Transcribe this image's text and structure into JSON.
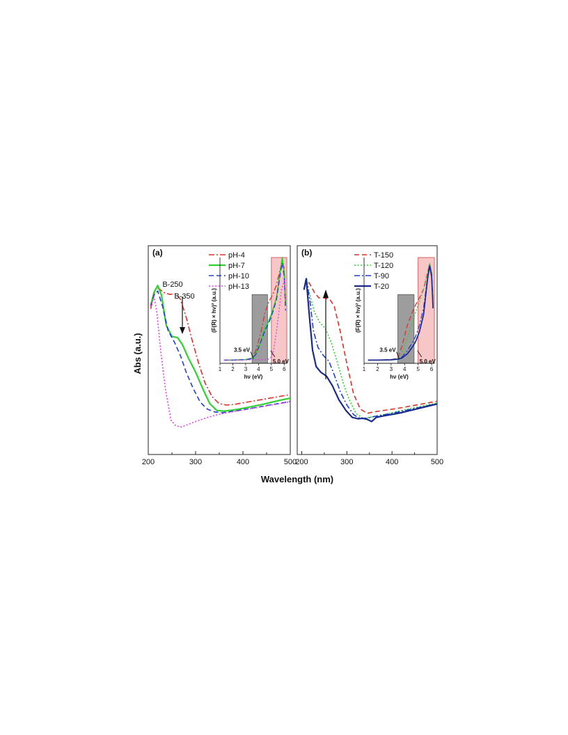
{
  "figure": {
    "ylabel": "Abs (a.u.)",
    "xlabel": "Wavelength (nm)"
  },
  "colors": {
    "pH-4": "#e0302a",
    "pH-7": "#2fd02f",
    "pH-10": "#1f3fd6",
    "pH-13": "#e040e8",
    "T-150": "#e0302a",
    "T-120": "#2fd02f",
    "T-90": "#1f3fd6",
    "T-20": "#1a2a8c",
    "gray_box": "#8c8c8c",
    "pink_box": "#f7c6c6"
  },
  "chart_data": [
    {
      "type": "line",
      "panel_label": "(a)",
      "xlim": [
        200,
        500
      ],
      "xticks": [
        "200",
        "300",
        "400",
        "500"
      ],
      "grid": false,
      "legend_position": "top-right",
      "annotations": {
        "peak1": "B-250",
        "peak2": "B-350",
        "arrow_direction": "down"
      },
      "series": [
        {
          "name": "pH-4",
          "style": "dash-dot",
          "x": [
            205,
            215,
            222,
            232,
            245,
            258,
            268,
            280,
            292,
            305,
            320,
            335,
            350,
            365,
            380,
            400,
            420,
            440,
            460,
            480,
            500
          ],
          "y": [
            0.63,
            0.7,
            0.705,
            0.69,
            0.683,
            0.685,
            0.665,
            0.6,
            0.52,
            0.44,
            0.36,
            0.31,
            0.285,
            0.28,
            0.282,
            0.288,
            0.294,
            0.3,
            0.306,
            0.312,
            0.318
          ]
        },
        {
          "name": "pH-7",
          "style": "solid",
          "x": [
            205,
            212,
            220,
            228,
            238,
            250,
            262,
            272,
            285,
            300,
            315,
            330,
            345,
            360,
            380,
            400,
            420,
            440,
            460,
            480,
            500
          ],
          "y": [
            0.64,
            0.69,
            0.715,
            0.68,
            0.57,
            0.53,
            0.525,
            0.5,
            0.45,
            0.4,
            0.34,
            0.285,
            0.26,
            0.258,
            0.262,
            0.268,
            0.275,
            0.282,
            0.29,
            0.298,
            0.305
          ]
        },
        {
          "name": "pH-10",
          "style": "dashed",
          "x": [
            205,
            212,
            220,
            230,
            242,
            255,
            268,
            280,
            295,
            310,
            325,
            340,
            355,
            370,
            390,
            410,
            430,
            450,
            470,
            490,
            500
          ],
          "y": [
            0.64,
            0.68,
            0.695,
            0.64,
            0.55,
            0.51,
            0.46,
            0.4,
            0.34,
            0.29,
            0.265,
            0.255,
            0.252,
            0.255,
            0.26,
            0.266,
            0.272,
            0.278,
            0.284,
            0.29,
            0.293
          ]
        },
        {
          "name": "pH-13",
          "style": "dotted",
          "x": [
            205,
            212,
            218,
            226,
            236,
            248,
            258,
            270,
            285,
            300,
            320,
            340,
            360,
            380,
            400,
            420,
            440,
            460,
            480,
            500
          ],
          "y": [
            0.64,
            0.675,
            0.62,
            0.48,
            0.34,
            0.225,
            0.205,
            0.2,
            0.21,
            0.22,
            0.232,
            0.242,
            0.25,
            0.256,
            0.262,
            0.268,
            0.274,
            0.28,
            0.286,
            0.292
          ]
        }
      ],
      "inset": {
        "xlabel": "hν (eV)",
        "ylabel": "(F(R) × hν)² (a.u.)",
        "xlim": [
          1,
          6.2
        ],
        "xticks": [
          "1",
          "2",
          "3",
          "4",
          "5",
          "6"
        ],
        "gray_band": [
          3.5,
          4.7
        ],
        "pink_band": [
          5.0,
          6.2
        ],
        "annotation_left": "3.5 eV",
        "annotation_right": "5.0 eV",
        "series": [
          {
            "name": "pH-4",
            "x": [
              1.3,
              2,
              3,
              3.5,
              3.8,
              4.2,
              4.5,
              4.8,
              5.1,
              5.4,
              5.7,
              5.85,
              6.0,
              6.1
            ],
            "y": [
              0.03,
              0.03,
              0.035,
              0.05,
              0.12,
              0.3,
              0.48,
              0.58,
              0.65,
              0.74,
              0.9,
              0.97,
              0.9,
              0.6
            ]
          },
          {
            "name": "pH-7",
            "x": [
              1.3,
              2,
              3,
              3.5,
              3.8,
              4.2,
              4.5,
              4.8,
              5.1,
              5.4,
              5.7,
              5.85,
              6.0,
              6.1
            ],
            "y": [
              0.03,
              0.03,
              0.035,
              0.045,
              0.09,
              0.22,
              0.33,
              0.4,
              0.5,
              0.62,
              0.88,
              1.0,
              0.85,
              0.55
            ]
          },
          {
            "name": "pH-10",
            "x": [
              1.3,
              2,
              3,
              3.5,
              3.8,
              4.2,
              4.5,
              4.8,
              5.1,
              5.4,
              5.7,
              5.85,
              6.0,
              6.1
            ],
            "y": [
              0.03,
              0.03,
              0.035,
              0.045,
              0.085,
              0.21,
              0.31,
              0.38,
              0.48,
              0.6,
              0.85,
              0.95,
              0.82,
              0.5
            ]
          },
          {
            "name": "pH-13",
            "x": [
              1.3,
              2,
              3,
              3.5,
              4,
              4.5,
              4.8,
              5.0,
              5.2,
              5.4,
              5.6,
              5.8,
              6.0,
              6.1
            ],
            "y": [
              0.03,
              0.03,
              0.032,
              0.033,
              0.034,
              0.036,
              0.04,
              0.06,
              0.14,
              0.3,
              0.5,
              0.7,
              0.78,
              0.6
            ]
          }
        ]
      }
    },
    {
      "type": "line",
      "panel_label": "(b)",
      "xlim": [
        190,
        500
      ],
      "xticks": [
        "200",
        "300",
        "400",
        "500"
      ],
      "grid": false,
      "legend_position": "top-right",
      "annotations": {
        "arrow_direction": "up"
      },
      "series": [
        {
          "name": "T-150",
          "style": "dashed",
          "x": [
            205,
            210,
            218,
            228,
            238,
            250,
            262,
            272,
            285,
            300,
            315,
            330,
            345,
            360,
            380,
            400,
            420,
            440,
            460,
            480,
            500
          ],
          "y": [
            0.7,
            0.74,
            0.72,
            0.69,
            0.67,
            0.67,
            0.665,
            0.64,
            0.55,
            0.43,
            0.32,
            0.265,
            0.25,
            0.255,
            0.26,
            0.265,
            0.27,
            0.276,
            0.282,
            0.288,
            0.294
          ]
        },
        {
          "name": "T-120",
          "style": "dotted",
          "x": [
            205,
            210,
            218,
            228,
            240,
            252,
            265,
            278,
            292,
            305,
            320,
            335,
            350,
            365,
            380,
            400,
            420,
            440,
            460,
            480,
            500
          ],
          "y": [
            0.7,
            0.74,
            0.68,
            0.62,
            0.58,
            0.56,
            0.51,
            0.44,
            0.36,
            0.3,
            0.25,
            0.232,
            0.235,
            0.24,
            0.245,
            0.252,
            0.26,
            0.267,
            0.274,
            0.281,
            0.288
          ]
        },
        {
          "name": "T-90",
          "style": "dash-dot",
          "x": [
            205,
            210,
            218,
            226,
            236,
            248,
            260,
            272,
            285,
            300,
            315,
            330,
            345,
            360,
            380,
            400,
            420,
            440,
            460,
            480,
            500
          ],
          "y": [
            0.7,
            0.74,
            0.66,
            0.55,
            0.49,
            0.46,
            0.44,
            0.39,
            0.33,
            0.28,
            0.245,
            0.23,
            0.232,
            0.238,
            0.244,
            0.25,
            0.257,
            0.264,
            0.271,
            0.278,
            0.285
          ]
        },
        {
          "name": "T-20",
          "style": "solid",
          "x": [
            205,
            210,
            216,
            224,
            232,
            242,
            255,
            268,
            282,
            298,
            312,
            325,
            335,
            345,
            355,
            365,
            380,
            400,
            420,
            440,
            460,
            480,
            500
          ],
          "y": [
            0.7,
            0.74,
            0.62,
            0.48,
            0.42,
            0.4,
            0.385,
            0.35,
            0.3,
            0.26,
            0.235,
            0.23,
            0.232,
            0.228,
            0.22,
            0.235,
            0.24,
            0.246,
            0.252,
            0.26,
            0.268,
            0.276,
            0.284
          ]
        }
      ],
      "inset": {
        "xlabel": "hν (eV)",
        "ylabel": "(F(R) × hν)² (a.u.)",
        "xlim": [
          1,
          6.2
        ],
        "xticks": [
          "1",
          "2",
          "3",
          "4",
          "5",
          "6"
        ],
        "gray_band": [
          3.5,
          4.7
        ],
        "pink_band": [
          5.0,
          6.2
        ],
        "annotation_left": "3.5 eV",
        "annotation_right": "5.0 eV",
        "series": [
          {
            "name": "T-150",
            "x": [
              1.3,
              2,
              3,
              3.5,
              3.8,
              4.2,
              4.5,
              4.8,
              5.1,
              5.4,
              5.7,
              5.85,
              6.0,
              6.1
            ],
            "y": [
              0.03,
              0.03,
              0.035,
              0.05,
              0.16,
              0.36,
              0.46,
              0.55,
              0.62,
              0.7,
              0.86,
              0.94,
              0.86,
              0.6
            ]
          },
          {
            "name": "T-120",
            "x": [
              1.3,
              2,
              3,
              3.5,
              3.8,
              4.2,
              4.5,
              4.8,
              5.1,
              5.4,
              5.7,
              5.85,
              6.0,
              6.1
            ],
            "y": [
              0.03,
              0.03,
              0.035,
              0.045,
              0.1,
              0.24,
              0.36,
              0.48,
              0.58,
              0.7,
              0.86,
              0.95,
              0.86,
              0.6
            ]
          },
          {
            "name": "T-90",
            "x": [
              1.3,
              2,
              3,
              3.5,
              3.8,
              4.2,
              4.5,
              4.8,
              5.1,
              5.4,
              5.7,
              5.85,
              6.0,
              6.1
            ],
            "y": [
              0.03,
              0.03,
              0.035,
              0.042,
              0.06,
              0.12,
              0.18,
              0.25,
              0.36,
              0.52,
              0.82,
              0.93,
              0.84,
              0.55
            ]
          },
          {
            "name": "T-20",
            "x": [
              1.3,
              2,
              3,
              3.5,
              3.8,
              4.2,
              4.5,
              4.8,
              5.1,
              5.4,
              5.7,
              5.85,
              6.0,
              6.1
            ],
            "y": [
              0.03,
              0.03,
              0.033,
              0.038,
              0.05,
              0.09,
              0.14,
              0.2,
              0.3,
              0.46,
              0.8,
              0.92,
              0.82,
              0.52
            ]
          }
        ]
      }
    }
  ]
}
